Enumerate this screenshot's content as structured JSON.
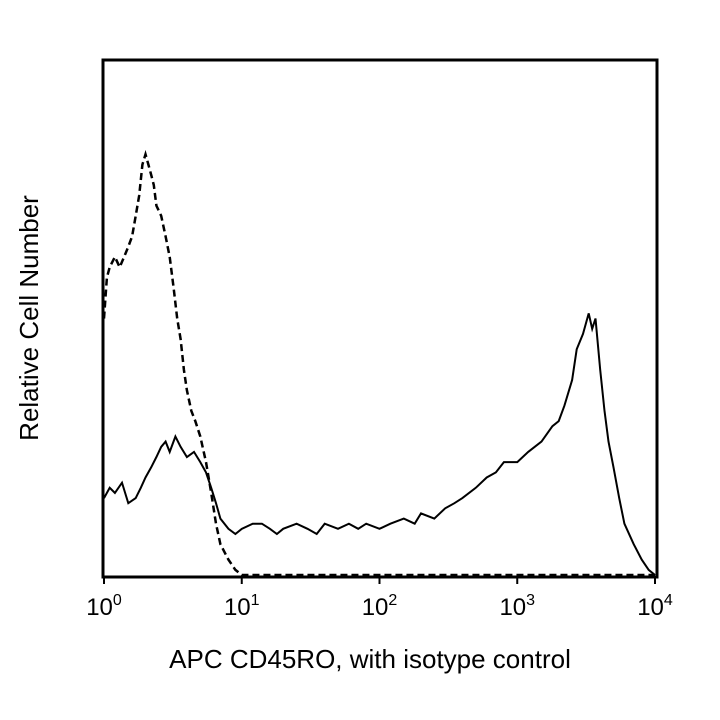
{
  "chart_data": {
    "type": "line",
    "title": "",
    "xlabel": "APC CD45RO, with isotype control",
    "ylabel": "Relative Cell Number",
    "x_scale": "log",
    "xlim": [
      1,
      10000
    ],
    "ylim": [
      0,
      100
    ],
    "grid": false,
    "legend": "none",
    "x_ticks": [
      {
        "base": "10",
        "exp": "0",
        "value": 1
      },
      {
        "base": "10",
        "exp": "1",
        "value": 10
      },
      {
        "base": "10",
        "exp": "2",
        "value": 100
      },
      {
        "base": "10",
        "exp": "3",
        "value": 1000
      },
      {
        "base": "10",
        "exp": "4",
        "value": 10000
      }
    ],
    "series": [
      {
        "style": "solid",
        "color": "#000000",
        "x": [
          1.0,
          1.1,
          1.2,
          1.35,
          1.5,
          1.7,
          1.85,
          2.0,
          2.2,
          2.4,
          2.6,
          2.8,
          3.0,
          3.3,
          3.6,
          4.0,
          4.5,
          5.0,
          5.5,
          6.0,
          6.5,
          7.0,
          8.0,
          9.0,
          10,
          12,
          14,
          16,
          18,
          20,
          25,
          30,
          35,
          40,
          50,
          60,
          70,
          80,
          100,
          120,
          150,
          180,
          200,
          250,
          300,
          350,
          400,
          500,
          600,
          700,
          800,
          1000,
          1200,
          1500,
          1800,
          2000,
          2200,
          2500,
          2700,
          3000,
          3300,
          3500,
          3700,
          4000,
          4300,
          4600,
          5000,
          5500,
          6000,
          7000,
          8000,
          9000,
          10000
        ],
        "y": [
          15,
          17,
          16,
          18,
          14,
          15,
          17,
          19,
          21,
          23,
          25,
          26,
          24,
          27,
          25,
          23,
          24,
          22,
          20,
          17,
          14,
          11,
          9,
          8,
          9,
          10,
          10,
          9,
          8,
          9,
          10,
          9,
          8,
          10,
          9,
          10,
          9,
          10,
          9,
          10,
          11,
          10,
          12,
          11,
          13,
          14,
          15,
          17,
          19,
          20,
          22,
          22,
          24,
          26,
          29,
          30,
          33,
          38,
          44,
          47,
          51,
          48,
          50,
          40,
          32,
          26,
          21,
          15,
          10,
          6,
          3,
          1,
          0
        ]
      },
      {
        "style": "dashed",
        "color": "#000000",
        "x": [
          1.0,
          1.05,
          1.1,
          1.2,
          1.3,
          1.4,
          1.5,
          1.6,
          1.7,
          1.8,
          1.9,
          2.0,
          2.1,
          2.2,
          2.3,
          2.4,
          2.6,
          2.8,
          3.0,
          3.2,
          3.4,
          3.6,
          3.8,
          4.0,
          4.3,
          4.6,
          5.0,
          5.5,
          6.0,
          6.5,
          7.0,
          8.0,
          9.0,
          10,
          12,
          15,
          20,
          50,
          100,
          1000,
          10000
        ],
        "y": [
          50,
          58,
          60,
          62,
          60,
          62,
          64,
          66,
          70,
          74,
          80,
          82,
          80,
          78,
          76,
          72,
          70,
          66,
          62,
          56,
          50,
          46,
          40,
          36,
          32,
          30,
          27,
          22,
          16,
          10,
          6,
          3,
          1,
          0,
          0,
          0,
          0,
          0,
          0,
          0,
          0
        ]
      }
    ]
  }
}
